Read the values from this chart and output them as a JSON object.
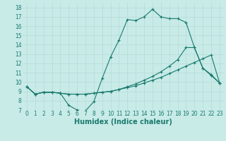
{
  "xlabel": "Humidex (Indice chaleur)",
  "background_color": "#c8ebe8",
  "grid_color": "#b8ddd9",
  "line_color": "#1a7a6e",
  "xlim": [
    -0.5,
    23.5
  ],
  "ylim": [
    7,
    18.5
  ],
  "xticks": [
    0,
    1,
    2,
    3,
    4,
    5,
    6,
    7,
    8,
    9,
    10,
    11,
    12,
    13,
    14,
    15,
    16,
    17,
    18,
    19,
    20,
    21,
    22,
    23
  ],
  "yticks": [
    7,
    8,
    9,
    10,
    11,
    12,
    13,
    14,
    15,
    16,
    17,
    18
  ],
  "line1_x": [
    0,
    1,
    2,
    3,
    4,
    5,
    6,
    7,
    8,
    9,
    10,
    11,
    12,
    13,
    14,
    15,
    16,
    17,
    18,
    19,
    20,
    21,
    22,
    23
  ],
  "line1_y": [
    9.5,
    8.7,
    8.9,
    8.9,
    8.8,
    7.5,
    7.0,
    6.9,
    7.9,
    10.4,
    12.7,
    14.5,
    16.7,
    16.6,
    17.0,
    17.8,
    17.0,
    16.8,
    16.8,
    16.4,
    13.7,
    11.5,
    10.7,
    9.9
  ],
  "line2_x": [
    0,
    1,
    2,
    3,
    4,
    5,
    6,
    7,
    8,
    9,
    10,
    11,
    12,
    13,
    14,
    15,
    16,
    17,
    18,
    19,
    20,
    21,
    22,
    23
  ],
  "line2_y": [
    9.5,
    8.7,
    8.9,
    8.9,
    8.8,
    8.7,
    8.7,
    8.7,
    8.8,
    8.9,
    9.0,
    9.2,
    9.4,
    9.6,
    9.9,
    10.2,
    10.5,
    10.9,
    11.3,
    11.7,
    12.1,
    12.5,
    12.9,
    9.9
  ],
  "line3_x": [
    0,
    1,
    2,
    3,
    4,
    5,
    6,
    7,
    8,
    9,
    10,
    11,
    12,
    13,
    14,
    15,
    16,
    17,
    18,
    19,
    20,
    21,
    22,
    23
  ],
  "line3_y": [
    9.5,
    8.7,
    8.9,
    8.9,
    8.8,
    8.7,
    8.7,
    8.7,
    8.8,
    8.9,
    9.0,
    9.2,
    9.5,
    9.8,
    10.2,
    10.6,
    11.1,
    11.7,
    12.4,
    13.7,
    13.7,
    11.5,
    10.8,
    9.9
  ],
  "tick_fontsize": 5.5,
  "xlabel_fontsize": 7.0,
  "marker": "+",
  "markersize": 2.5,
  "linewidth": 0.8
}
